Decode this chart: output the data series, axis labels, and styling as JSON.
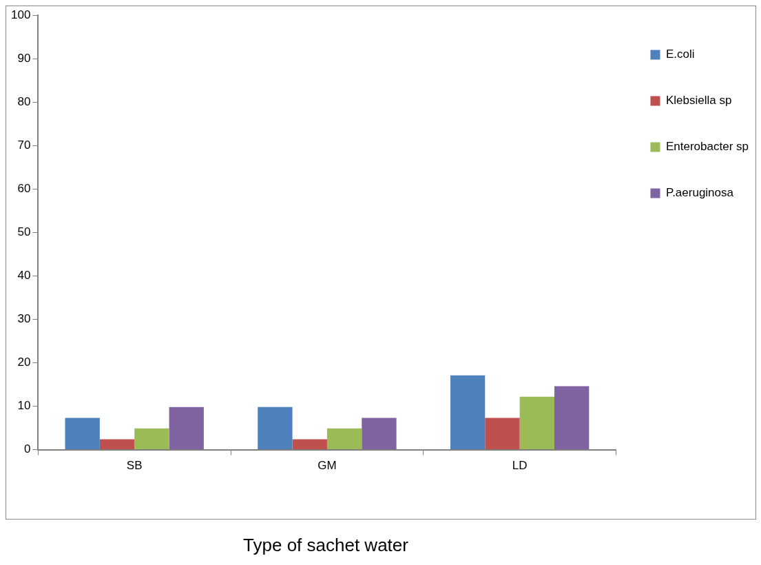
{
  "chart_data": {
    "type": "bar",
    "xlabel": "Type of sachet water",
    "categories": [
      "SB",
      "GM",
      "LD"
    ],
    "series": [
      {
        "name": "E.coli",
        "color": "#4f81bd",
        "values": [
          7.3,
          9.8,
          17.1
        ]
      },
      {
        "name": "Klebsiella sp",
        "color": "#c0504d",
        "values": [
          2.4,
          2.4,
          7.3
        ]
      },
      {
        "name": "Enterobacter sp",
        "color": "#9bbb59",
        "values": [
          4.9,
          4.9,
          12.2
        ]
      },
      {
        "name": "P.aeruginosa",
        "color": "#8064a2",
        "values": [
          9.8,
          7.3,
          14.6
        ]
      }
    ],
    "ylim": [
      0,
      100
    ],
    "yticks": [
      0,
      10,
      20,
      30,
      40,
      50,
      60,
      70,
      80,
      90,
      100
    ],
    "grid": false,
    "legend": "right"
  }
}
